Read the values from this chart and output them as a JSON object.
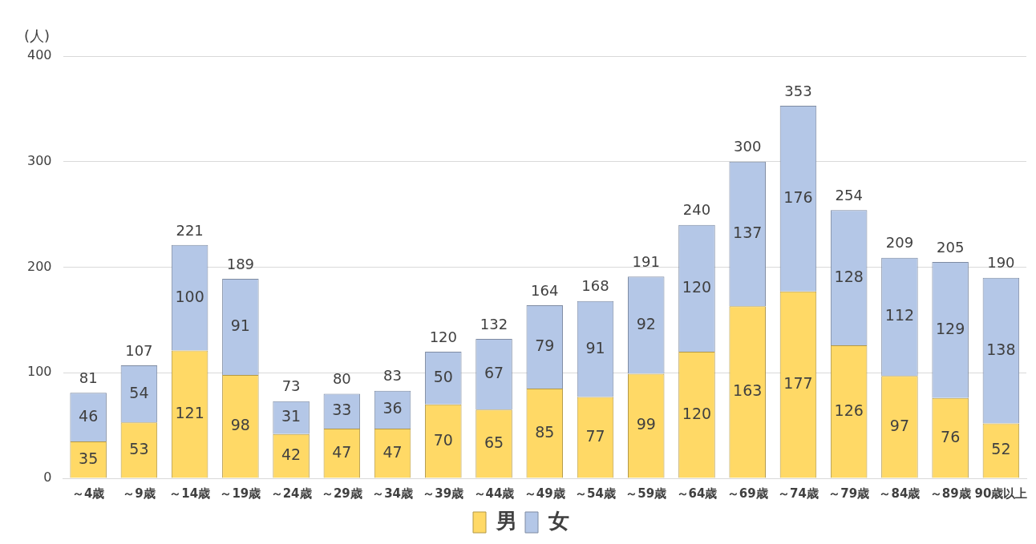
{
  "chart_data": {
    "type": "bar",
    "ylabel": "(人)",
    "stacked": true,
    "data_labels": true,
    "grid": "y",
    "legend": "bottom",
    "categories": [
      "～4歳",
      "～9歳",
      "～14歳",
      "～19歳",
      "～24歳",
      "～29歳",
      "～34歳",
      "～39歳",
      "～44歳",
      "～49歳",
      "～54歳",
      "～59歳",
      "～64歳",
      "～69歳",
      "～74歳",
      "～79歳",
      "～84歳",
      "～89歳",
      "90歳以上"
    ],
    "series": [
      {
        "name": "男",
        "color": "#ffd966",
        "values": [
          35,
          53,
          121,
          98,
          42,
          47,
          47,
          70,
          65,
          85,
          77,
          99,
          120,
          163,
          177,
          126,
          97,
          76,
          52
        ]
      },
      {
        "name": "女",
        "color": "#b4c7e7",
        "values": [
          46,
          54,
          100,
          91,
          31,
          33,
          36,
          50,
          67,
          79,
          91,
          92,
          120,
          137,
          176,
          128,
          112,
          129,
          138
        ]
      }
    ],
    "totals": [
      "81",
      "107",
      "221",
      "189",
      "73",
      "80",
      "83",
      "120",
      "132",
      "164",
      "168",
      "191",
      "240",
      "300",
      "353",
      "254",
      "209",
      "205",
      "190"
    ],
    "ylim": [
      0,
      400
    ],
    "yticks": [
      0,
      100,
      200,
      300,
      400
    ]
  }
}
